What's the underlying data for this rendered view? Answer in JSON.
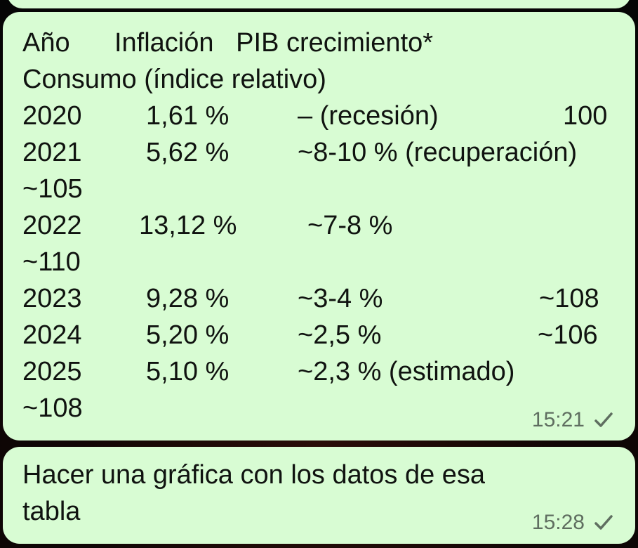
{
  "message_1": {
    "header_line_1": "Año      Inflación   PIB crecimiento*",
    "header_line_2": "Consumo (índice relativo)",
    "rows": [
      {
        "year": "2020",
        "inflation": "1,61 %",
        "gdp": "– (recesión)",
        "consumption": "100",
        "wrap": ""
      },
      {
        "year": "2021",
        "inflation": "5,62 %",
        "gdp": "~8-10 % (recuperación)",
        "consumption": "",
        "wrap": "~105"
      },
      {
        "year": "2022",
        "inflation": "13,12 %",
        "gdp": "~7-8 %",
        "consumption": "",
        "wrap": "~110"
      },
      {
        "year": "2023",
        "inflation": "9,28 %",
        "gdp": "~3-4 %",
        "consumption": "~108",
        "wrap": ""
      },
      {
        "year": "2024",
        "inflation": "5,20 %",
        "gdp": "~2,5 %",
        "consumption": "~106",
        "wrap": ""
      },
      {
        "year": "2025",
        "inflation": "5,10 %",
        "gdp": "~2,3 % (estimado)",
        "consumption": "",
        "wrap": "~108"
      }
    ],
    "time": "15:21",
    "status_icon": "sent-check-icon"
  },
  "message_2": {
    "line_1": "Hacer una gráfica con los datos de esa",
    "line_2": "tabla",
    "time": "15:28",
    "status_icon": "sent-check-icon"
  },
  "colors": {
    "bubble": "#d8fcd3",
    "text": "#101310",
    "meta": "#5f6e60",
    "background": "#0a0a0a"
  }
}
